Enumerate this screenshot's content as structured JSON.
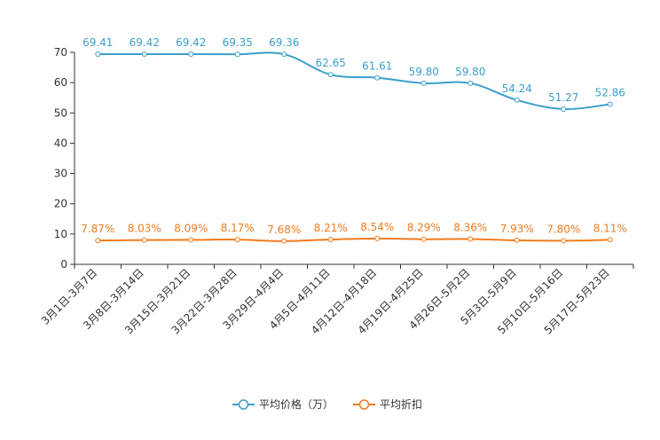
{
  "chart_data": {
    "type": "line",
    "categories": [
      "3月1日-3月7日",
      "3月8日-3月14日",
      "3月15日-3月21日",
      "3月22日-3月28日",
      "3月29日-4月4日",
      "4月5日-4月11日",
      "4月12日-4月18日",
      "4月19日-4月25日",
      "4月26日-5月2日",
      "5月3日-5月9日",
      "5月10日-5月16日",
      "5月17日-5月23日"
    ],
    "ylim": [
      0,
      70
    ],
    "yticks": [
      0,
      10,
      20,
      30,
      40,
      50,
      60,
      70
    ],
    "yticks_text": [
      "0",
      "10",
      "20",
      "30",
      "40",
      "50",
      "60",
      "70"
    ],
    "grid": false,
    "legend_position": "bottom-center",
    "series": [
      {
        "name": "平均价格（万）",
        "color": "#3c9fcb",
        "values": [
          69.41,
          69.42,
          69.42,
          69.35,
          69.36,
          62.65,
          61.61,
          59.8,
          59.8,
          54.24,
          51.27,
          52.86
        ],
        "labels": [
          "69.41",
          "69.42",
          "69.42",
          "69.35",
          "69.36",
          "62.65",
          "61.61",
          "59.80",
          "59.80",
          "54.24",
          "51.27",
          "52.86"
        ]
      },
      {
        "name": "平均折扣",
        "color": "#f07c1d",
        "values": [
          7.87,
          8.03,
          8.09,
          8.17,
          7.68,
          8.21,
          8.54,
          8.29,
          8.36,
          7.93,
          7.8,
          8.11
        ],
        "labels": [
          "7.87%",
          "8.03%",
          "8.09%",
          "8.17%",
          "7.68%",
          "8.21%",
          "8.54%",
          "8.29%",
          "8.36%",
          "7.93%",
          "7.80%",
          "8.11%"
        ]
      }
    ]
  }
}
